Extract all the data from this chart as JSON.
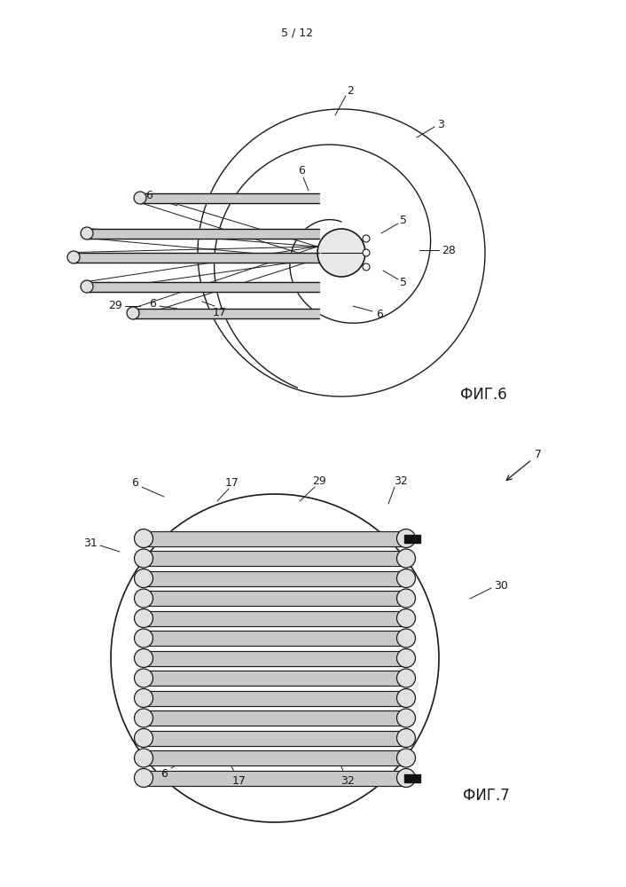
{
  "page_header": "5 / 12",
  "fig6_label": "ФИГ.6",
  "fig7_label": "ФИГ.7",
  "bg_color": "#ffffff",
  "line_color": "#1a1a1a",
  "gray_light": "#d0d0d0",
  "gray_dark": "#888888",
  "black": "#111111"
}
